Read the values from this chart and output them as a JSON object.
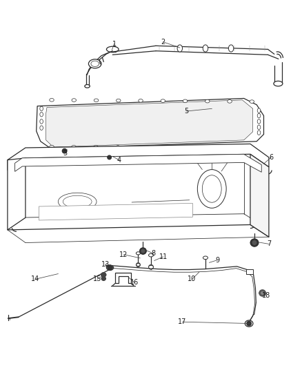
{
  "bg_color": "#ffffff",
  "lc": "#2a2a2a",
  "lc_light": "#888888",
  "fig_width": 4.38,
  "fig_height": 5.33,
  "dpi": 100,
  "label_fs": 7.0,
  "leader_lw": 0.55
}
